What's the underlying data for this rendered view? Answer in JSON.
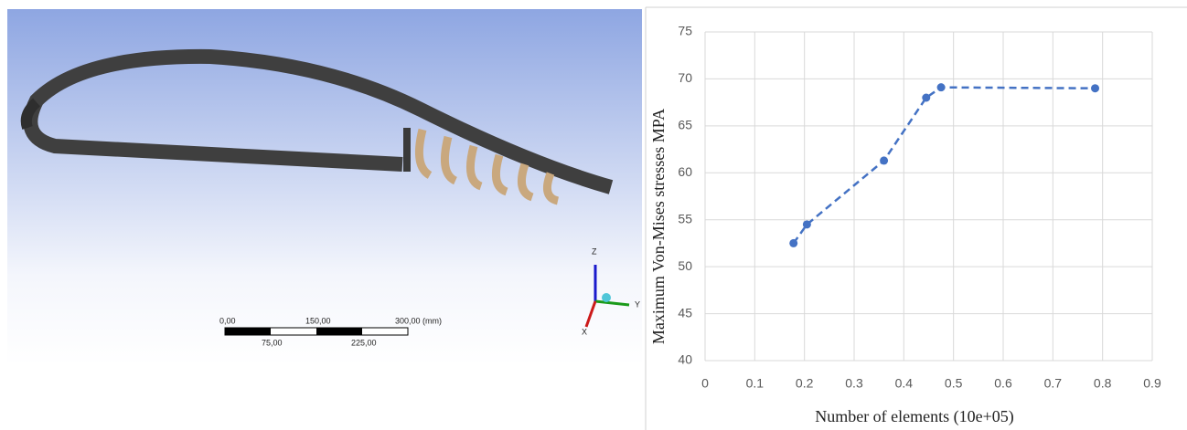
{
  "chart_data": {
    "type": "line",
    "x_label": "Number of elements (10e+05)",
    "y_label": "Maximum Von-Mises stresses MPA",
    "x": [
      0.178,
      0.205,
      0.36,
      0.445,
      0.475,
      0.785
    ],
    "series": [
      {
        "color": "#4472c4",
        "values": [
          52.5,
          54.5,
          61.3,
          68,
          69.1,
          69
        ]
      }
    ],
    "xlim": [
      0,
      0.9
    ],
    "xticks": [
      0,
      0.1,
      0.2,
      0.3,
      0.4,
      0.5,
      0.6,
      0.7,
      0.8,
      0.9
    ],
    "ylim": [
      40,
      75
    ],
    "yticks": [
      40,
      45,
      50,
      55,
      60,
      65,
      70,
      75
    ],
    "grid": true,
    "dashed": true
  },
  "scale_bar": {
    "top_labels": [
      "0,00",
      "150,00",
      "300,00 (mm)"
    ],
    "bottom_labels": [
      "75,00",
      "225,00"
    ]
  },
  "triad": {
    "z": "Z",
    "y": "Y",
    "x": "X"
  }
}
